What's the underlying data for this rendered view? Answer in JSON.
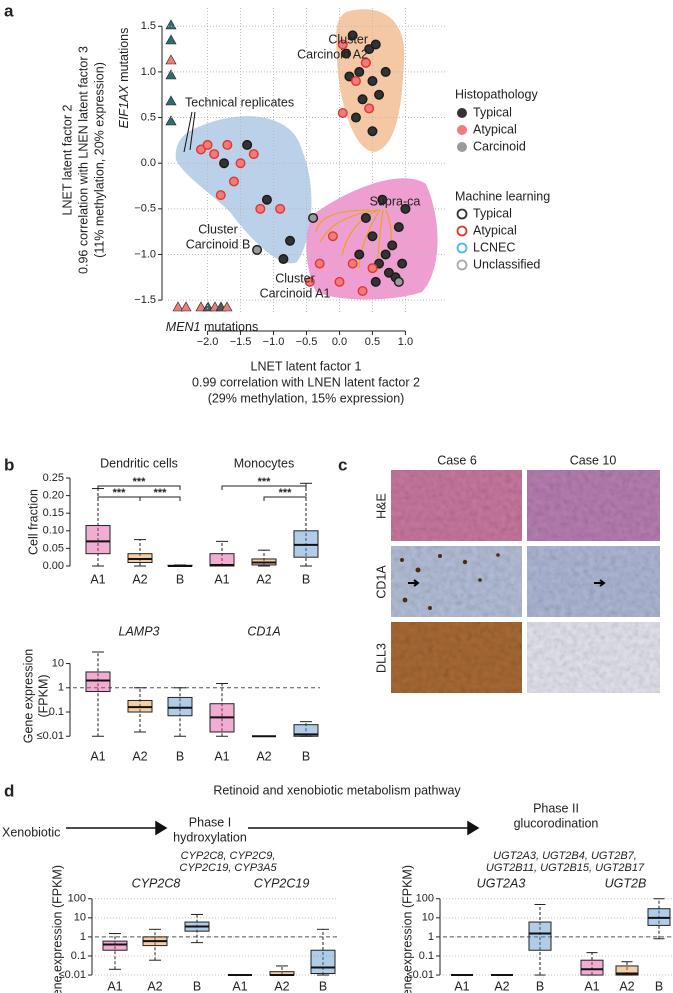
{
  "panel_labels": [
    "a",
    "b",
    "c",
    "d"
  ],
  "chart_data": [
    {
      "type": "scatter",
      "xlabel": [
        "LNET latent factor 1",
        "0.99 correlation with LNEN latent factor 2",
        "(29% methylation, 15% expression)"
      ],
      "ylabel": [
        "LNET latent factor 2",
        "0.96 correlation with LNEN latent factor 3",
        "(11% methylation, 20% expression)"
      ],
      "xlim": [
        -2.6,
        1.6
      ],
      "ylim": [
        -1.63,
        1.7
      ],
      "xticks": [
        {
          "value": -2,
          "label": "−2.0"
        },
        {
          "value": -1.5,
          "label": "−1.5"
        },
        {
          "value": -1,
          "label": "−1.0"
        },
        {
          "value": -0.5,
          "label": "−0.5"
        },
        {
          "value": 0,
          "label": "0.0"
        },
        0.5,
        {
          "value": 1,
          "label": "1.0"
        }
      ],
      "yticks": [
        {
          "value": -1.5,
          "label": "−1.5"
        },
        {
          "value": -1,
          "label": "−1.0"
        },
        {
          "value": -0.5,
          "label": "−0.5"
        },
        {
          "value": 0,
          "label": "0.0"
        },
        0.5,
        {
          "value": 1,
          "label": "1.0"
        },
        1.5
      ],
      "grid": true,
      "legend_title": "Histopathology",
      "series": [
        {
          "name": "Typical",
          "color": "#333333",
          "ring": "#1a1a1a",
          "x": [
            0.3,
            0.4,
            0.5,
            0.45,
            0.2,
            0.55,
            0.1,
            0.35,
            0.6,
            0.25,
            0.7,
            0.15,
            0.5,
            0.5,
            0.7,
            0.8,
            0.9,
            0.6,
            0.75,
            0.4,
            1.0,
            0.65,
            0.95,
            0.3,
            0.55,
            0.85,
            -0.85,
            -0.75,
            -1.1,
            -1.4,
            -1.75
          ],
          "values": [
            1.0,
            1.1,
            0.9,
            1.25,
            1.4,
            1.3,
            1.2,
            0.7,
            0.75,
            0.5,
            1.0,
            0.95,
            0.35,
            -0.8,
            -1.0,
            -0.9,
            -0.7,
            -1.1,
            -1.2,
            -0.6,
            -0.5,
            -0.4,
            -1.1,
            -1.0,
            -1.3,
            -1.25,
            -1.05,
            -0.85,
            -0.4,
            0.2,
            0.0
          ]
        },
        {
          "name": "Atypical",
          "color": "#f07b7b",
          "ring": "#e3342f",
          "x": [
            -2.1,
            -2.0,
            -1.9,
            -1.7,
            -1.5,
            -1.3,
            -1.6,
            -1.8,
            -1.2,
            -0.9,
            0.25,
            0.05,
            -0.3,
            -0.1,
            0.0,
            0.2,
            0.35,
            0.5,
            -0.45,
            0.45,
            0.4,
            0.05
          ],
          "values": [
            0.15,
            0.2,
            0.1,
            0.2,
            0.0,
            0.1,
            -0.2,
            -0.35,
            -0.5,
            -0.5,
            0.9,
            1.3,
            -1.1,
            -0.8,
            -1.3,
            -1.1,
            -1.4,
            -1.15,
            -1.3,
            0.6,
            1.1,
            0.55
          ]
        },
        {
          "name": "Carcinoid",
          "color": "#9a9a9a",
          "ring": "#1a1a1a",
          "x": [
            -1.25,
            -0.4,
            0.9
          ],
          "values": [
            -0.95,
            -0.6,
            -1.3
          ]
        }
      ],
      "ml_legend": {
        "title": "Machine learning",
        "entries": [
          {
            "name": "Typical",
            "color": "#333333"
          },
          {
            "name": "Atypical",
            "color": "#e3342f"
          },
          {
            "name": "LCNEC",
            "color": "#4fb3e6"
          },
          {
            "name": "Unclassified",
            "color": "#aaaaaa"
          }
        ]
      },
      "annotations": [
        {
          "lines": [
            "Cluster",
            "Carcinoid A2"
          ],
          "color": "#e8a47a"
        },
        {
          "lines": [
            "Cluster",
            "Carcinoid B"
          ],
          "color": "#8ab4d8"
        },
        {
          "lines": [
            "Cluster",
            "Carcinoid A1"
          ],
          "color": "#e070b0"
        },
        {
          "lines": [
            "Technical replicates"
          ],
          "color": "#111111"
        },
        {
          "lines": [
            "Supra-ca"
          ],
          "color": "#e8a800"
        }
      ],
      "mutation_labels": [
        {
          "gene": "EIF1AX",
          "label": "mutations",
          "color": "#5bbcc4"
        },
        {
          "gene": "MEN1",
          "label": "mutations",
          "color": "#e8a47a"
        }
      ]
    },
    {
      "type": "box",
      "categories": [
        "A1",
        "A2",
        "B"
      ],
      "colors": [
        "#e0489c",
        "#e8923e",
        "#4f8fc7"
      ],
      "ylabel": "Cell fraction",
      "ylim": [
        0,
        0.25
      ],
      "yticks": [
        {
          "value": 0,
          "label": "0.00"
        },
        0.05,
        {
          "value": 0.1,
          "label": "0.10"
        },
        0.15,
        {
          "value": 0.2,
          "label": "0.20"
        },
        0.25
      ],
      "panels": [
        {
          "title": "Dendritic cells",
          "significance": [
            "***",
            "***",
            "***"
          ],
          "boxes": [
            {
              "low": 0,
              "q1": 0.035,
              "median": 0.07,
              "q3": 0.115,
              "high": 0.22
            },
            {
              "low": 0,
              "q1": 0.01,
              "median": 0.02,
              "q3": 0.035,
              "high": 0.075
            },
            {
              "low": 0,
              "q1": 0,
              "median": 0,
              "q3": 0.002,
              "high": 0.003
            }
          ]
        },
        {
          "title": "Monocytes",
          "significance": [
            "***",
            "***"
          ],
          "boxes": [
            {
              "low": 0,
              "q1": 0,
              "median": 0.003,
              "q3": 0.035,
              "high": 0.07
            },
            {
              "low": 0,
              "q1": 0.003,
              "median": 0.01,
              "q3": 0.02,
              "high": 0.045
            },
            {
              "low": 0,
              "q1": 0.025,
              "median": 0.06,
              "q3": 0.1,
              "high": 0.235
            }
          ]
        }
      ]
    },
    {
      "type": "box",
      "categories": [
        "A1",
        "A2",
        "B"
      ],
      "colors": [
        "#e0489c",
        "#e8923e",
        "#4f8fc7"
      ],
      "ylabel": [
        "Gene expression",
        "(FPKM)"
      ],
      "log_y": true,
      "italic_titles": true,
      "hline": 1,
      "ylim": [
        0.007,
        30
      ],
      "yticks": [
        {
          "value": 0.01,
          "label": "≤0.01"
        },
        0.1,
        1,
        10
      ],
      "panels": [
        {
          "title": "LAMP3",
          "boxes": [
            {
              "low": 0.01,
              "q1": 0.7,
              "median": 2,
              "q3": 4.5,
              "high": 30
            },
            {
              "low": 0.015,
              "q1": 0.1,
              "median": 0.16,
              "q3": 0.3,
              "high": 1
            },
            {
              "low": 0.01,
              "q1": 0.07,
              "median": 0.15,
              "q3": 0.4,
              "high": 1
            }
          ]
        },
        {
          "title": "CD1A",
          "boxes": [
            {
              "low": 0.01,
              "q1": 0.015,
              "median": 0.06,
              "q3": 0.22,
              "high": 1.5
            },
            {
              "low": 0.01,
              "q1": 0.01,
              "median": 0.01,
              "q3": 0.01,
              "high": 0.01
            },
            {
              "low": 0.01,
              "q1": 0.01,
              "median": 0.012,
              "q3": 0.03,
              "high": 0.04
            }
          ]
        }
      ]
    },
    {
      "type": "box",
      "categories": [
        "A1",
        "A2",
        "B"
      ],
      "colors": [
        "#e0489c",
        "#e8923e",
        "#4f8fc7"
      ],
      "ylabel": "Gene expression (FPKM)",
      "log_y": true,
      "italic_titles": true,
      "hline": 1,
      "grid": true,
      "ylim": [
        0.007,
        200
      ],
      "yticks": [
        {
          "value": 0.01,
          "label": "≤0.01"
        },
        0.1,
        1,
        10,
        100
      ],
      "panels": [
        {
          "title": "CYP2C8",
          "boxes": [
            {
              "low": 0.02,
              "q1": 0.2,
              "median": 0.4,
              "q3": 0.6,
              "high": 1.5
            },
            {
              "low": 0.06,
              "q1": 0.35,
              "median": 0.6,
              "q3": 1.0,
              "high": 2.5
            },
            {
              "low": 0.5,
              "q1": 2,
              "median": 3.5,
              "q3": 6,
              "high": 15
            }
          ]
        },
        {
          "title": "CYP2C19",
          "boxes": [
            {
              "low": 0.01,
              "q1": 0.01,
              "median": 0.01,
              "q3": 0.01,
              "high": 0.01
            },
            {
              "low": 0.01,
              "q1": 0.01,
              "median": 0.01,
              "q3": 0.015,
              "high": 0.03
            },
            {
              "low": 0.01,
              "q1": 0.012,
              "median": 0.025,
              "q3": 0.2,
              "high": 2.5
            }
          ]
        }
      ]
    },
    {
      "type": "box",
      "categories": [
        "A1",
        "A2",
        "B"
      ],
      "colors": [
        "#e0489c",
        "#e8923e",
        "#4f8fc7"
      ],
      "ylabel": "Gene expression (FPKM)",
      "log_y": true,
      "italic_titles": true,
      "hline": 1,
      "grid": true,
      "ylim": [
        0.007,
        200
      ],
      "yticks": [
        {
          "value": 0.01,
          "label": "≤0.01"
        },
        0.1,
        1,
        10,
        100
      ],
      "panels": [
        {
          "title": "UGT2A3",
          "boxes": [
            {
              "low": 0.01,
              "q1": 0.01,
              "median": 0.01,
              "q3": 0.01,
              "high": 0.01
            },
            {
              "low": 0.01,
              "q1": 0.01,
              "median": 0.01,
              "q3": 0.01,
              "high": 0.01
            },
            {
              "low": 0.01,
              "q1": 0.2,
              "median": 1.5,
              "q3": 6,
              "high": 50
            }
          ]
        },
        {
          "title": "UGT2B",
          "boxes": [
            {
              "low": 0.01,
              "q1": 0.01,
              "median": 0.02,
              "q3": 0.06,
              "high": 0.15
            },
            {
              "low": 0.01,
              "q1": 0.01,
              "median": 0.012,
              "q3": 0.03,
              "high": 0.05
            },
            {
              "low": 0.8,
              "q1": 4,
              "median": 10,
              "q3": 30,
              "high": 100
            }
          ]
        }
      ]
    }
  ],
  "ihc": {
    "columns": [
      "Case 6",
      "Case 10"
    ],
    "rows": [
      "H&E",
      "CD1A",
      "DLL3"
    ]
  },
  "pathway": {
    "title": "Retinoid and xenobiotic metabolism pathway",
    "start": "Xenobiotic",
    "phase1": [
      "Phase I",
      "hydroxylation"
    ],
    "phase1_genes": [
      "CYP2C8, CYP2C9,",
      "CYP2C19, CYP3A5"
    ],
    "phase2": [
      "Phase II",
      "glucorodination"
    ],
    "phase2_genes": [
      "UGT2A3, UGT2B4, UGT2B7,",
      "UGT2B11, UGT2B15, UGT2B17"
    ]
  }
}
